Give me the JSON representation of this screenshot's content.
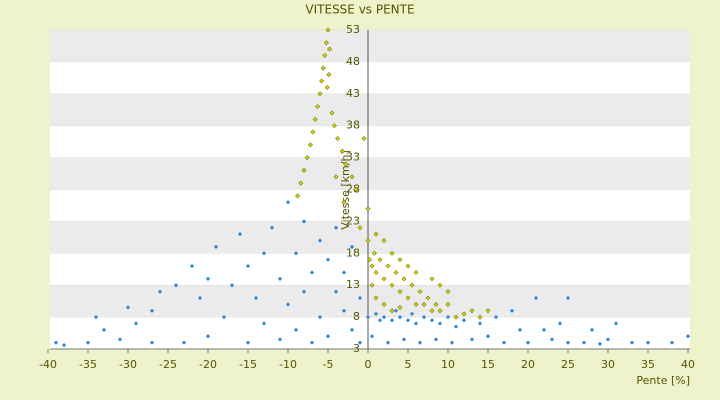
{
  "chart_data": {
    "type": "scatter",
    "title": "VITESSE vs PENTE",
    "x_label": "Pente [%]",
    "y_label": "Vitesse [km/h]",
    "xlim": [
      -40,
      40
    ],
    "ylim": [
      3,
      53
    ],
    "xticks": [
      -40,
      -35,
      -30,
      -25,
      -20,
      -15,
      -10,
      -5,
      0,
      5,
      10,
      15,
      20,
      25,
      30,
      35,
      40
    ],
    "yticks": [
      3,
      8,
      13,
      18,
      23,
      28,
      33,
      38,
      43,
      48,
      53
    ],
    "grid": true,
    "series": [
      {
        "color": "#2e86de",
        "x": [
          -39,
          -38,
          -35,
          -34,
          -33,
          -31,
          -30,
          -29,
          -27,
          -27,
          -26,
          -24,
          -23,
          -22,
          -21,
          -20,
          -20,
          -19,
          -18,
          -17,
          -16,
          -15,
          -15,
          -14,
          -13,
          -13,
          -12,
          -11,
          -11,
          -10,
          -10,
          -9,
          -9,
          -8,
          -8,
          -7,
          -7,
          -6,
          -6,
          -5,
          -5,
          -4,
          -4,
          -3,
          -3,
          -2,
          -2,
          -1,
          -1,
          0,
          0.5,
          1,
          1.5,
          2,
          2.5,
          3,
          3.5,
          4,
          4.5,
          5,
          5.5,
          6,
          6.5,
          7,
          8,
          8.5,
          9,
          10,
          10.5,
          11,
          12,
          13,
          14,
          15,
          16,
          17,
          18,
          19,
          20,
          21,
          22,
          23,
          24,
          25,
          25,
          27,
          28,
          29,
          30,
          31,
          33,
          35,
          38,
          40
        ],
        "y": [
          4,
          3.6,
          4,
          8,
          6,
          4.5,
          9.5,
          7,
          4,
          9,
          12,
          13,
          4,
          16,
          11,
          14,
          5,
          19,
          8,
          13,
          21,
          16,
          4,
          11,
          7,
          18,
          22,
          14,
          4.5,
          26,
          10,
          18,
          6,
          23,
          12,
          15,
          4,
          20,
          8,
          17,
          5,
          12,
          22,
          9,
          15,
          6,
          19,
          11,
          4,
          8,
          5,
          8.5,
          7.5,
          8,
          4,
          7.5,
          9,
          8,
          4.5,
          7.5,
          8.5,
          7,
          4,
          8,
          7.5,
          4.5,
          7,
          8,
          4,
          6.5,
          7.5,
          4.5,
          7,
          5,
          8,
          4,
          9,
          6,
          4,
          11,
          6,
          4.5,
          7,
          4,
          11,
          4,
          6,
          3.8,
          4.5,
          7,
          4,
          4,
          4,
          5
        ]
      },
      {
        "color": "#d6d600",
        "x": [
          -5,
          -5.2,
          -5.4,
          -5.6,
          -5.8,
          -6,
          -6.3,
          -6.6,
          -6.9,
          -7.2,
          -7.6,
          -8,
          -8.4,
          -8.8,
          -4.8,
          -4.9,
          -5.1,
          -4.5,
          -4.2,
          -3.8,
          -3.2,
          -2.8,
          -2,
          -1.5,
          -4,
          -3,
          -1,
          -0.5,
          0,
          0,
          0.2,
          0.5,
          0.8,
          1,
          1.5,
          2,
          2.5,
          3,
          3.5,
          4,
          4.5,
          5,
          5.5,
          6,
          6.5,
          7,
          7.5,
          8,
          8.5,
          9,
          10,
          11,
          12,
          13,
          14,
          3,
          4,
          5,
          6,
          8,
          2,
          1,
          0.5,
          1,
          2,
          3,
          4,
          10,
          15,
          9
        ],
        "y": [
          53,
          51,
          49,
          47,
          45,
          43,
          41,
          39,
          37,
          35,
          33,
          31,
          29,
          27,
          50,
          46,
          44,
          40,
          38,
          36,
          34,
          32,
          30,
          28,
          30,
          26,
          22,
          36,
          25,
          20,
          17,
          16,
          18,
          15,
          17,
          14,
          16,
          13,
          15,
          12,
          14,
          11,
          13,
          10,
          12,
          10,
          11,
          9,
          10,
          9,
          10,
          8,
          8.5,
          9,
          8,
          18,
          17,
          16,
          15,
          14,
          20,
          21,
          13,
          11,
          10,
          9,
          9.5,
          12,
          9,
          13
        ]
      }
    ]
  }
}
